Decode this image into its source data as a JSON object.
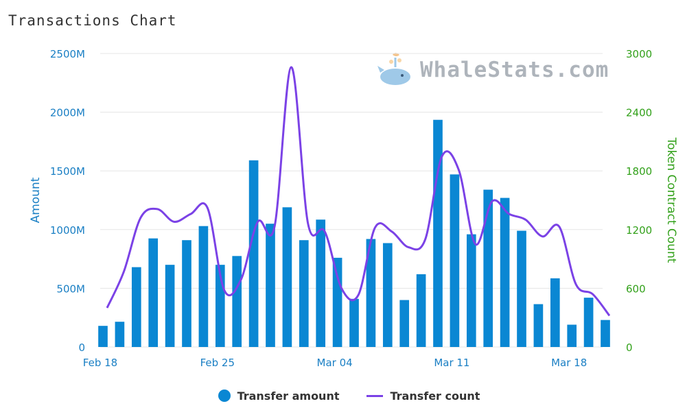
{
  "title": "Transactions Chart",
  "watermark": "WhaleStats.com",
  "colors": {
    "bar": "#0a87d3",
    "line": "#7b42e6",
    "left_axis": "#1a7fc4",
    "right_axis": "#33a11b",
    "grid": "#e5e5e5",
    "watermark": "#aeb4bb"
  },
  "legend": {
    "amount_label": "Transfer amount",
    "count_label": "Transfer count"
  },
  "chart_data": {
    "type": "bar",
    "title": "Transactions Chart",
    "x_ticks": [
      "Feb 18",
      "Feb 25",
      "Mar 04",
      "Mar 11",
      "Mar 18"
    ],
    "x_tick_index": [
      0,
      7,
      14,
      21,
      28
    ],
    "ylabel_left": "Amount",
    "ylabel_right": "Token Contract Count",
    "y_left_ticks": [
      "0",
      "500M",
      "1000M",
      "1500M",
      "2000M",
      "2500M"
    ],
    "y_left_range": [
      0,
      2500
    ],
    "y_right_ticks": [
      "0",
      "600",
      "1200",
      "1800",
      "2400",
      "3000"
    ],
    "y_right_range": [
      0,
      3000
    ],
    "grid": true,
    "legend_position": "bottom-center",
    "series": [
      {
        "name": "Transfer amount",
        "type": "bar",
        "axis": "left",
        "unit": "M",
        "values": [
          180,
          215,
          680,
          925,
          700,
          910,
          1030,
          700,
          775,
          1590,
          1050,
          1190,
          910,
          1085,
          760,
          410,
          920,
          885,
          400,
          620,
          1935,
          1470,
          960,
          1340,
          1270,
          990,
          365,
          585,
          190,
          420,
          230
        ]
      },
      {
        "name": "Transfer count",
        "type": "line",
        "axis": "right",
        "values": [
          400,
          770,
          1320,
          1410,
          1280,
          1360,
          1420,
          580,
          690,
          1280,
          1230,
          2860,
          1260,
          1180,
          600,
          530,
          1220,
          1180,
          1020,
          1100,
          1950,
          1810,
          1050,
          1490,
          1360,
          1300,
          1130,
          1230,
          640,
          540,
          320
        ]
      }
    ]
  }
}
